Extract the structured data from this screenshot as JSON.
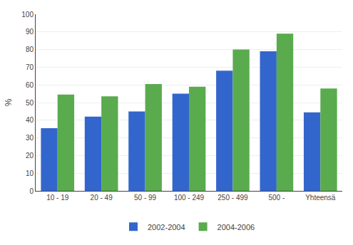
{
  "chart_data": {
    "type": "bar",
    "categories": [
      "10 - 19",
      "20 - 49",
      "50 - 99",
      "100 - 249",
      "250 - 499",
      "500 -",
      "Yhteensä"
    ],
    "series": [
      {
        "name": "2002-2004",
        "color": "#3366cc",
        "values": [
          35.5,
          42,
          45,
          55,
          68,
          79,
          44.5
        ]
      },
      {
        "name": "2004-2006",
        "color": "#5aab4e",
        "values": [
          54.5,
          53.5,
          60.5,
          59,
          80,
          89,
          58
        ]
      }
    ],
    "ylabel": "%",
    "ylim": [
      0,
      100
    ],
    "yticks": [
      0,
      10,
      20,
      30,
      40,
      50,
      60,
      70,
      80,
      90,
      100
    ],
    "grid": true,
    "legend": "bottom"
  }
}
